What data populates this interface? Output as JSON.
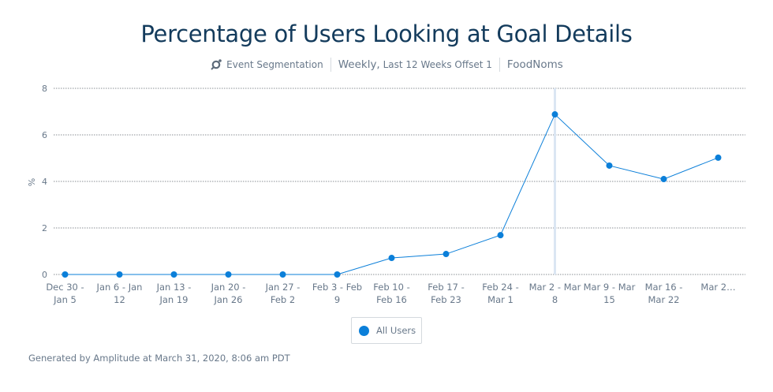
{
  "chart_data": {
    "type": "line",
    "title": "Percentage of Users Looking at Goal Details",
    "subtitle": {
      "analysis": "Event Segmentation",
      "interval": "Weekly,",
      "range": "Last 12 Weeks Offset 1",
      "project": "FoodNoms"
    },
    "ylabel": "%",
    "xlabel": "",
    "ylim": [
      0,
      8
    ],
    "yticks": [
      0,
      2,
      4,
      6,
      8
    ],
    "grid": true,
    "categories": [
      [
        "Dec 30 -",
        "Jan 5"
      ],
      [
        "Jan 6 - Jan",
        "12"
      ],
      [
        "Jan 13 -",
        "Jan 19"
      ],
      [
        "Jan 20 -",
        "Jan 26"
      ],
      [
        "Jan 27 -",
        "Feb 2"
      ],
      [
        "Feb 3 - Feb",
        "9"
      ],
      [
        "Feb 10 -",
        "Feb 16"
      ],
      [
        "Feb 17 -",
        "Feb 23"
      ],
      [
        "Feb 24 -",
        "Mar 1"
      ],
      [
        "Mar 2 - Mar",
        "8"
      ],
      [
        "Mar 9 - Mar",
        "15"
      ],
      [
        "Mar 16 -",
        "Mar 22"
      ],
      [
        "Mar 2…",
        ""
      ]
    ],
    "series": [
      {
        "name": "All Users",
        "color": "#0b7fd9",
        "values": [
          0,
          0,
          0,
          0,
          0,
          0,
          0.71,
          0.88,
          1.69,
          6.88,
          4.68,
          4.1,
          5.02
        ]
      }
    ],
    "highlighted_category_index": 9,
    "legend": "bottom-center"
  },
  "footer": "Generated by Amplitude at March 31, 2020, 8:06 am PDT"
}
